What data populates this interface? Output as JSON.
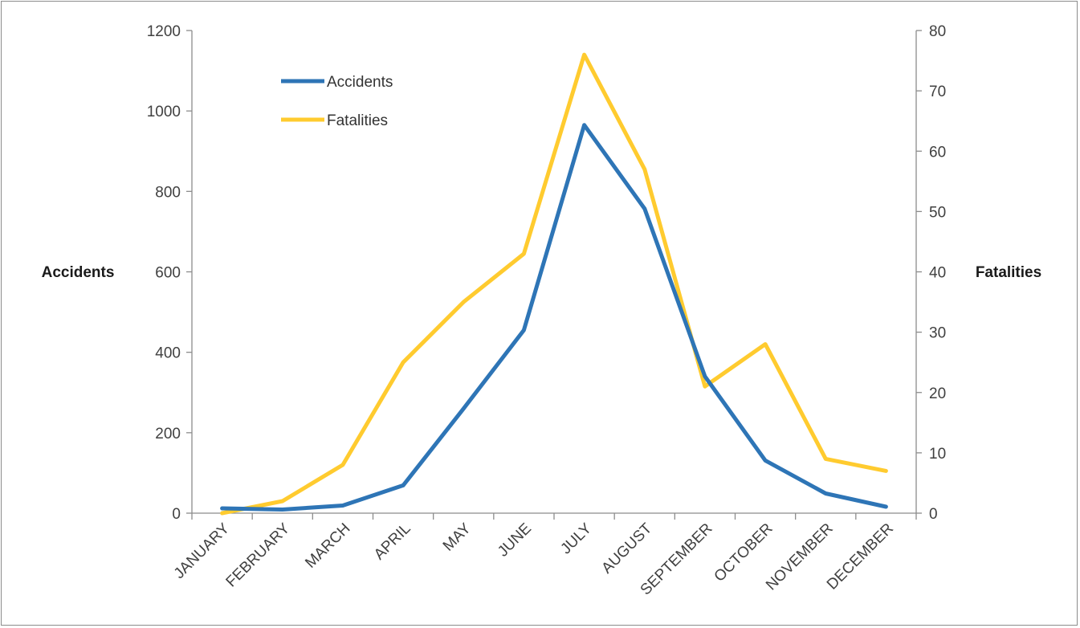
{
  "chart_data": {
    "type": "line",
    "categories": [
      "JANUARY",
      "FEBRUARY",
      "MARCH",
      "APRIL",
      "MAY",
      "JUNE",
      "JULY",
      "AUGUST",
      "SEPTEMBER",
      "OCTOBER",
      "NOVEMBER",
      "DECEMBER"
    ],
    "series": [
      {
        "name": "Accidents",
        "axis": "left",
        "color": "#2e75b6",
        "values": [
          12,
          9,
          19,
          69,
          260,
          455,
          965,
          757,
          340,
          131,
          49,
          16
        ]
      },
      {
        "name": "Fatalities",
        "axis": "right",
        "color": "#ffcb2f",
        "values": [
          0,
          2,
          8,
          25,
          35,
          43,
          76,
          57,
          21,
          28,
          9,
          7
        ]
      }
    ],
    "ylabel": "Accidents",
    "y2label": "Fatalities",
    "ylim": [
      0,
      1200
    ],
    "y2lim": [
      0,
      80
    ],
    "yticks": [
      0,
      200,
      400,
      600,
      800,
      1000,
      1200
    ],
    "y2ticks": [
      0,
      10,
      20,
      30,
      40,
      50,
      60,
      70,
      80
    ],
    "legend_position": "top-left",
    "grid": false
  }
}
